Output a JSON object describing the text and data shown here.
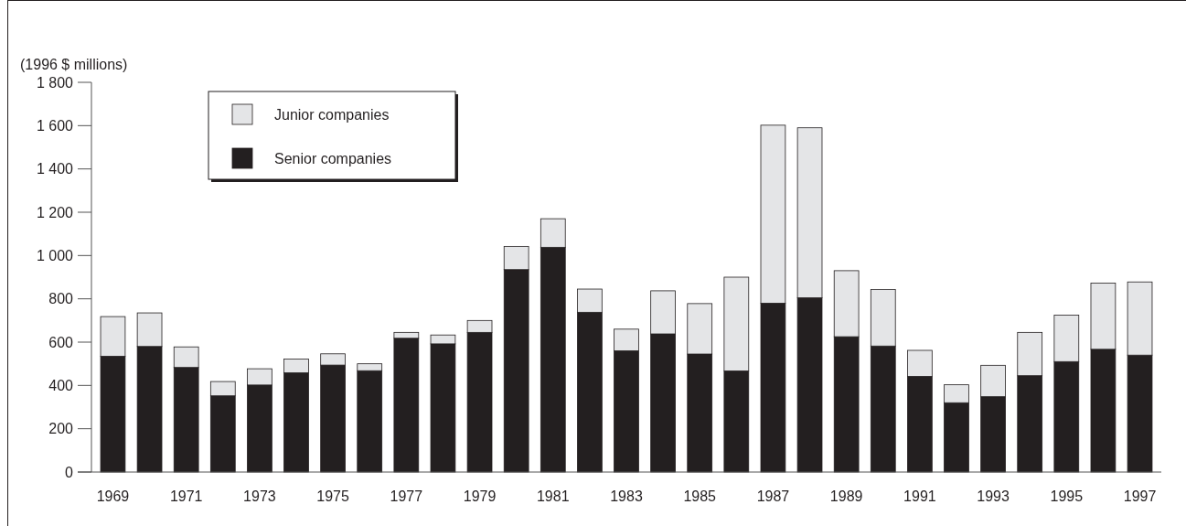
{
  "chart_data": {
    "type": "bar",
    "stacked": true,
    "ylabel": "(1996 $ millions)",
    "categories": [
      "1969",
      null,
      "1971",
      null,
      "1973",
      null,
      "1975",
      null,
      "1977",
      null,
      "1979",
      null,
      "1981",
      null,
      "1983",
      null,
      "1985",
      null,
      "1987",
      null,
      "1989",
      null,
      "1991",
      null,
      "1993",
      null,
      "1995",
      null,
      "1997"
    ],
    "series": [
      {
        "name": "Senior companies",
        "color": "#231f20",
        "values": [
          535,
          580,
          483,
          352,
          402,
          458,
          494,
          468,
          618,
          592,
          645,
          935,
          1038,
          738,
          560,
          638,
          545,
          467,
          780,
          805,
          625,
          582,
          442,
          320,
          348,
          445,
          510,
          567,
          540
        ]
      },
      {
        "name": "Junior companies",
        "color": "#e4e5e7",
        "values": [
          183,
          155,
          95,
          66,
          75,
          64,
          52,
          32,
          27,
          41,
          55,
          107,
          132,
          107,
          100,
          199,
          233,
          433,
          822,
          785,
          305,
          261,
          120,
          83,
          145,
          200,
          215,
          306,
          338
        ]
      }
    ],
    "ylim": [
      0,
      1800
    ],
    "yticks": [
      0,
      200,
      400,
      600,
      800,
      {
        "value": 1000,
        "label": "1 000"
      },
      {
        "value": 1200,
        "label": "1 200"
      },
      {
        "value": 1400,
        "label": "1 400"
      },
      {
        "value": 1600,
        "label": "1 600"
      },
      {
        "value": 1800,
        "label": "1 800"
      }
    ],
    "grid": false,
    "legend": "top left"
  }
}
